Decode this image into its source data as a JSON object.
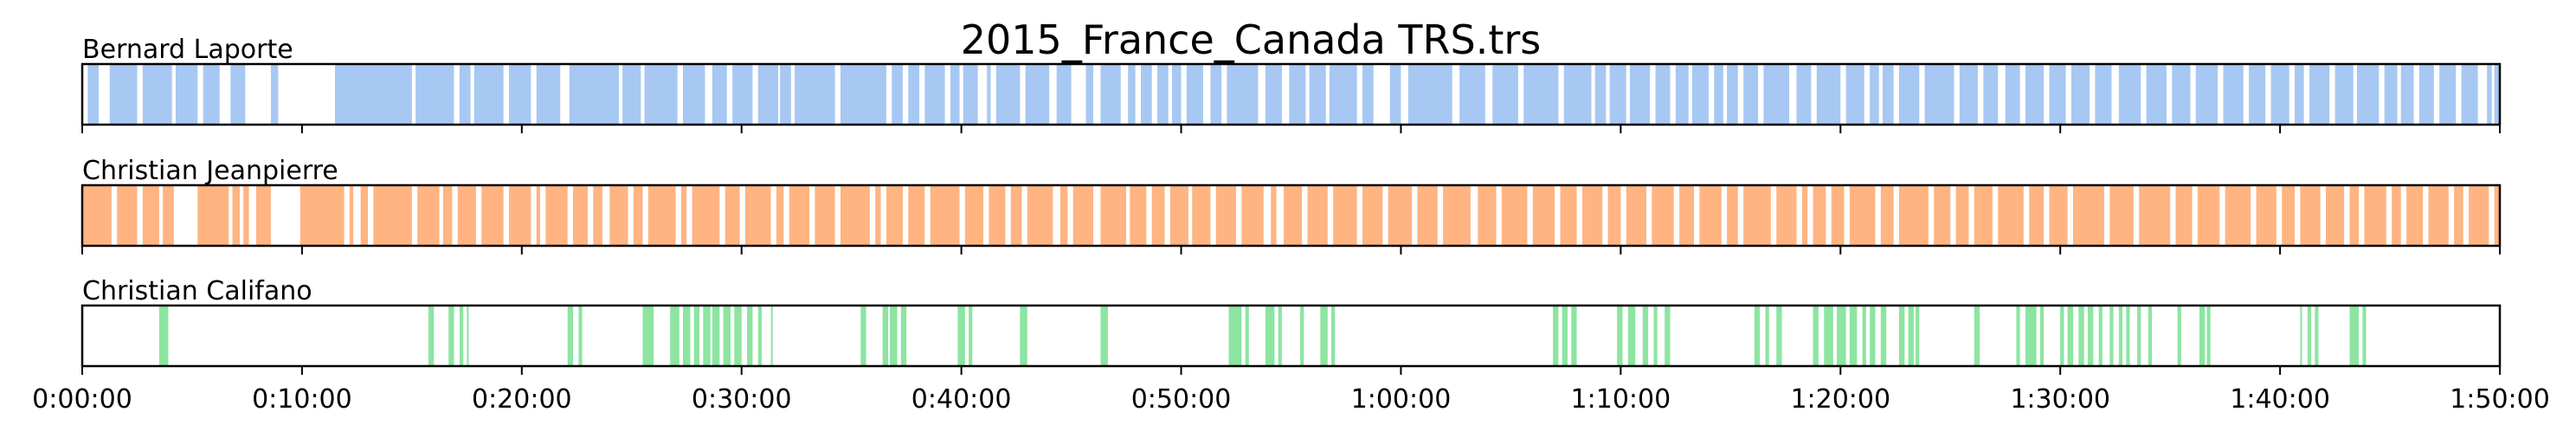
{
  "chart_data": {
    "type": "timeline",
    "title": "2015_France_Canada TRS.trs",
    "x_unit": "seconds",
    "xlim": [
      0,
      6600
    ],
    "x_ticks": [
      0,
      600,
      1200,
      1800,
      2400,
      3000,
      3600,
      4200,
      4800,
      5400,
      6000,
      6600
    ],
    "x_tick_labels": [
      "0:00:00",
      "0:10:00",
      "0:20:00",
      "0:30:00",
      "0:40:00",
      "0:50:00",
      "1:00:00",
      "1:10:00",
      "1:20:00",
      "1:30:00",
      "1:40:00",
      "1:50:00"
    ],
    "series": [
      {
        "name": "Bernard Laporte",
        "color": "#a6c8f3",
        "segments": [
          [
            15,
            45
          ],
          [
            75,
            150
          ],
          [
            165,
            245
          ],
          [
            255,
            315
          ],
          [
            330,
            375
          ],
          [
            405,
            445
          ],
          [
            515,
            535
          ],
          [
            690,
            900
          ],
          [
            910,
            1015
          ],
          [
            1030,
            1060
          ],
          [
            1070,
            1150
          ],
          [
            1165,
            1225
          ],
          [
            1240,
            1305
          ],
          [
            1330,
            1465
          ],
          [
            1475,
            1525
          ],
          [
            1535,
            1625
          ],
          [
            1640,
            1700
          ],
          [
            1720,
            1760
          ],
          [
            1775,
            1830
          ],
          [
            1845,
            1900
          ],
          [
            1905,
            1935
          ],
          [
            1945,
            2055
          ],
          [
            2070,
            2195
          ],
          [
            2210,
            2240
          ],
          [
            2255,
            2285
          ],
          [
            2300,
            2355
          ],
          [
            2370,
            2395
          ],
          [
            2405,
            2445
          ],
          [
            2470,
            2480
          ],
          [
            2495,
            2560
          ],
          [
            2575,
            2640
          ],
          [
            2660,
            2700
          ],
          [
            2740,
            2760
          ],
          [
            2780,
            2835
          ],
          [
            2855,
            2875
          ],
          [
            2890,
            2920
          ],
          [
            2935,
            2965
          ],
          [
            2975,
            3000
          ],
          [
            3015,
            3060
          ],
          [
            3080,
            3110
          ],
          [
            3125,
            3210
          ],
          [
            3230,
            3275
          ],
          [
            3295,
            3340
          ],
          [
            3350,
            3395
          ],
          [
            3405,
            3480
          ],
          [
            3495,
            3525
          ],
          [
            3570,
            3600
          ],
          [
            3620,
            3740
          ],
          [
            3760,
            3830
          ],
          [
            3850,
            3920
          ],
          [
            3935,
            4030
          ],
          [
            4045,
            4120
          ],
          [
            4130,
            4160
          ],
          [
            4170,
            4215
          ],
          [
            4225,
            4280
          ],
          [
            4295,
            4335
          ],
          [
            4350,
            4385
          ],
          [
            4395,
            4440
          ],
          [
            4455,
            4480
          ],
          [
            4490,
            4520
          ],
          [
            4535,
            4575
          ],
          [
            4590,
            4660
          ],
          [
            4680,
            4720
          ],
          [
            4735,
            4800
          ],
          [
            4815,
            4865
          ],
          [
            4880,
            4905
          ],
          [
            4915,
            4945
          ],
          [
            4960,
            5015
          ],
          [
            5030,
            5110
          ],
          [
            5125,
            5175
          ],
          [
            5190,
            5230
          ],
          [
            5250,
            5290
          ],
          [
            5305,
            5355
          ],
          [
            5370,
            5415
          ],
          [
            5430,
            5480
          ],
          [
            5495,
            5540
          ],
          [
            5560,
            5620
          ],
          [
            5635,
            5690
          ],
          [
            5705,
            5755
          ],
          [
            5770,
            5830
          ],
          [
            5845,
            5900
          ],
          [
            5915,
            5960
          ],
          [
            5975,
            6025
          ],
          [
            6040,
            6065
          ],
          [
            6080,
            6135
          ],
          [
            6150,
            6200
          ],
          [
            6210,
            6270
          ],
          [
            6285,
            6320
          ],
          [
            6330,
            6365
          ],
          [
            6380,
            6420
          ],
          [
            6435,
            6480
          ],
          [
            6495,
            6540
          ],
          [
            6565,
            6578
          ],
          [
            6585,
            6600
          ]
        ]
      },
      {
        "name": "Christian Jeanpierre",
        "color": "#ffb482",
        "segments": [
          [
            0,
            80
          ],
          [
            95,
            150
          ],
          [
            165,
            210
          ],
          [
            220,
            250
          ],
          [
            315,
            400
          ],
          [
            410,
            430
          ],
          [
            440,
            455
          ],
          [
            475,
            515
          ],
          [
            595,
            715
          ],
          [
            730,
            740
          ],
          [
            760,
            780
          ],
          [
            795,
            900
          ],
          [
            915,
            975
          ],
          [
            985,
            1010
          ],
          [
            1025,
            1075
          ],
          [
            1090,
            1150
          ],
          [
            1165,
            1225
          ],
          [
            1240,
            1250
          ],
          [
            1265,
            1325
          ],
          [
            1340,
            1380
          ],
          [
            1395,
            1420
          ],
          [
            1440,
            1490
          ],
          [
            1505,
            1530
          ],
          [
            1545,
            1620
          ],
          [
            1635,
            1650
          ],
          [
            1665,
            1740
          ],
          [
            1755,
            1795
          ],
          [
            1810,
            1880
          ],
          [
            1895,
            1915
          ],
          [
            1930,
            1985
          ],
          [
            2000,
            2055
          ],
          [
            2070,
            2150
          ],
          [
            2165,
            2180
          ],
          [
            2195,
            2240
          ],
          [
            2255,
            2300
          ],
          [
            2315,
            2395
          ],
          [
            2410,
            2460
          ],
          [
            2475,
            2520
          ],
          [
            2535,
            2565
          ],
          [
            2580,
            2650
          ],
          [
            2670,
            2690
          ],
          [
            2705,
            2760
          ],
          [
            2780,
            2850
          ],
          [
            2860,
            2905
          ],
          [
            2920,
            2955
          ],
          [
            2970,
            3020
          ],
          [
            3030,
            3080
          ],
          [
            3095,
            3150
          ],
          [
            3165,
            3225
          ],
          [
            3245,
            3260
          ],
          [
            3280,
            3330
          ],
          [
            3345,
            3400
          ],
          [
            3415,
            3480
          ],
          [
            3495,
            3550
          ],
          [
            3565,
            3630
          ],
          [
            3645,
            3700
          ],
          [
            3715,
            3790
          ],
          [
            3810,
            3860
          ],
          [
            3875,
            3945
          ],
          [
            3960,
            4020
          ],
          [
            4035,
            4080
          ],
          [
            4095,
            4150
          ],
          [
            4165,
            4200
          ],
          [
            4215,
            4270
          ],
          [
            4285,
            4345
          ],
          [
            4360,
            4400
          ],
          [
            4415,
            4475
          ],
          [
            4490,
            4520
          ],
          [
            4535,
            4610
          ],
          [
            4625,
            4680
          ],
          [
            4695,
            4710
          ],
          [
            4725,
            4760
          ],
          [
            4775,
            4810
          ],
          [
            4825,
            4895
          ],
          [
            4910,
            4945
          ],
          [
            4960,
            5040
          ],
          [
            5055,
            5100
          ],
          [
            5115,
            5150
          ],
          [
            5165,
            5215
          ],
          [
            5230,
            5300
          ],
          [
            5315,
            5355
          ],
          [
            5370,
            5420
          ],
          [
            5435,
            5520
          ],
          [
            5535,
            5600
          ],
          [
            5615,
            5700
          ],
          [
            5715,
            5760
          ],
          [
            5775,
            5835
          ],
          [
            5850,
            5920
          ],
          [
            5935,
            5990
          ],
          [
            6005,
            6040
          ],
          [
            6055,
            6110
          ],
          [
            6125,
            6175
          ],
          [
            6190,
            6215
          ],
          [
            6230,
            6290
          ],
          [
            6305,
            6330
          ],
          [
            6345,
            6390
          ],
          [
            6405,
            6460
          ],
          [
            6475,
            6500
          ],
          [
            6515,
            6570
          ],
          [
            6585,
            6600
          ]
        ]
      },
      {
        "name": "Christian Califano",
        "color": "#8de5a1",
        "segments": [
          [
            210,
            235
          ],
          [
            945,
            960
          ],
          [
            1000,
            1015
          ],
          [
            1030,
            1040
          ],
          [
            1050,
            1055
          ],
          [
            1325,
            1340
          ],
          [
            1355,
            1365
          ],
          [
            1530,
            1560
          ],
          [
            1605,
            1630
          ],
          [
            1640,
            1660
          ],
          [
            1670,
            1685
          ],
          [
            1695,
            1715
          ],
          [
            1720,
            1740
          ],
          [
            1750,
            1770
          ],
          [
            1780,
            1800
          ],
          [
            1815,
            1830
          ],
          [
            1845,
            1855
          ],
          [
            1880,
            1885
          ],
          [
            2125,
            2140
          ],
          [
            2185,
            2200
          ],
          [
            2205,
            2225
          ],
          [
            2235,
            2250
          ],
          [
            2390,
            2410
          ],
          [
            2420,
            2430
          ],
          [
            2560,
            2580
          ],
          [
            2780,
            2800
          ],
          [
            3130,
            3165
          ],
          [
            3175,
            3185
          ],
          [
            3230,
            3255
          ],
          [
            3265,
            3275
          ],
          [
            3325,
            3335
          ],
          [
            3380,
            3400
          ],
          [
            3410,
            3420
          ],
          [
            4015,
            4030
          ],
          [
            4040,
            4055
          ],
          [
            4065,
            4080
          ],
          [
            4190,
            4205
          ],
          [
            4220,
            4240
          ],
          [
            4260,
            4275
          ],
          [
            4290,
            4300
          ],
          [
            4320,
            4335
          ],
          [
            4565,
            4580
          ],
          [
            4595,
            4605
          ],
          [
            4625,
            4640
          ],
          [
            4725,
            4740
          ],
          [
            4755,
            4780
          ],
          [
            4790,
            4815
          ],
          [
            4825,
            4845
          ],
          [
            4860,
            4870
          ],
          [
            4880,
            4895
          ],
          [
            4910,
            4925
          ],
          [
            4960,
            4975
          ],
          [
            4985,
            5000
          ],
          [
            5005,
            5015
          ],
          [
            5165,
            5180
          ],
          [
            5280,
            5290
          ],
          [
            5305,
            5335
          ],
          [
            5345,
            5355
          ],
          [
            5400,
            5410
          ],
          [
            5420,
            5435
          ],
          [
            5450,
            5465
          ],
          [
            5475,
            5490
          ],
          [
            5505,
            5515
          ],
          [
            5535,
            5545
          ],
          [
            5560,
            5570
          ],
          [
            5580,
            5590
          ],
          [
            5610,
            5620
          ],
          [
            5640,
            5650
          ],
          [
            5720,
            5730
          ],
          [
            5780,
            5795
          ],
          [
            5800,
            5810
          ],
          [
            6055,
            6060
          ],
          [
            6075,
            6085
          ],
          [
            6095,
            6105
          ],
          [
            6190,
            6215
          ],
          [
            6225,
            6235
          ]
        ]
      }
    ]
  }
}
